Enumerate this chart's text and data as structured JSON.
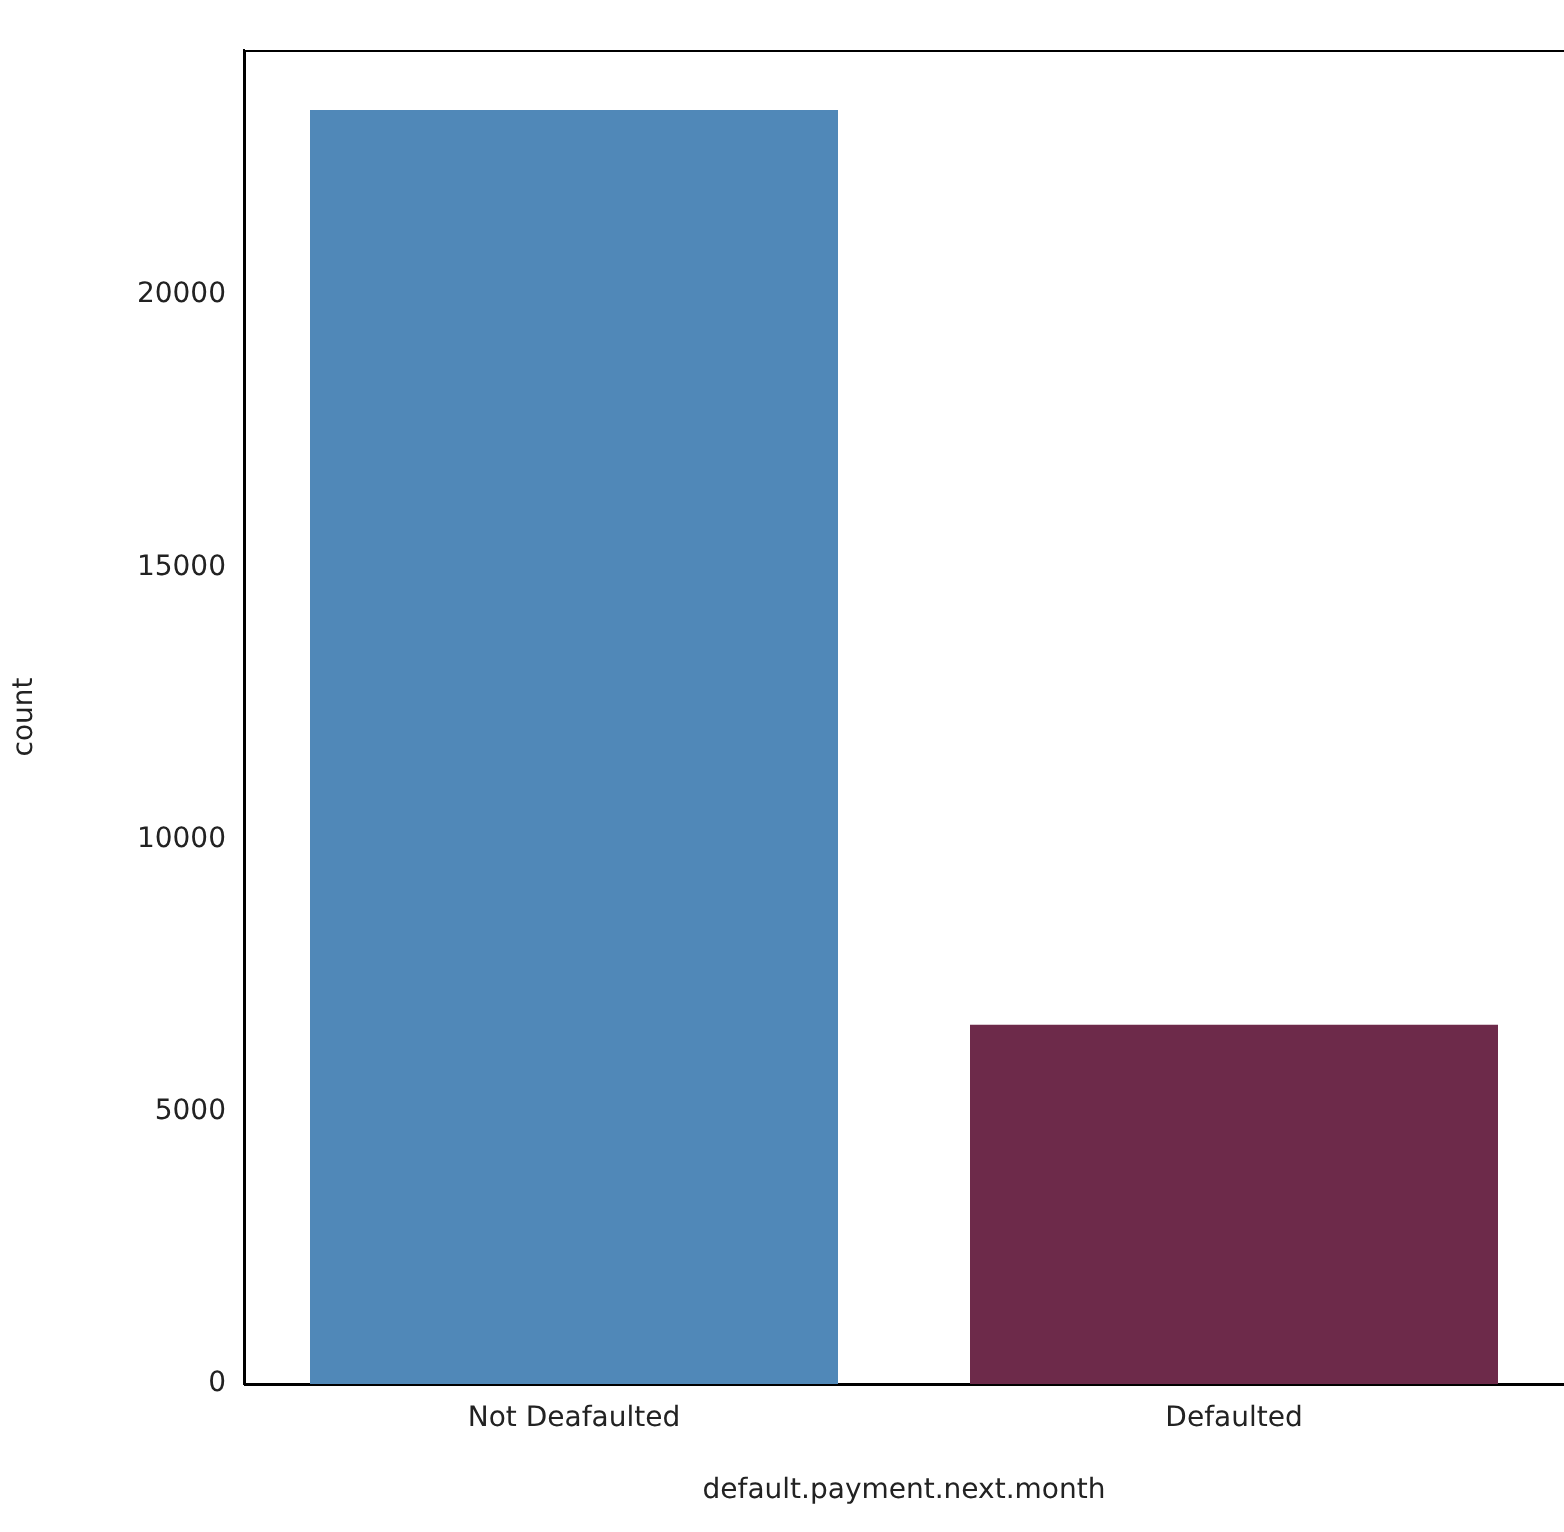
{
  "chart_data": {
    "type": "bar",
    "xlabel": "default.payment.next.month",
    "ylabel": "count",
    "categories": [
      "Not Deafaulted",
      "Defaulted"
    ],
    "values": [
      23400,
      6600
    ],
    "colors": [
      "#5088b8",
      "#6d2a4a"
    ],
    "ylim": [
      0,
      24500
    ],
    "yticks": [
      0,
      5000,
      10000,
      15000,
      20000
    ],
    "grid": false,
    "legend": false
  }
}
